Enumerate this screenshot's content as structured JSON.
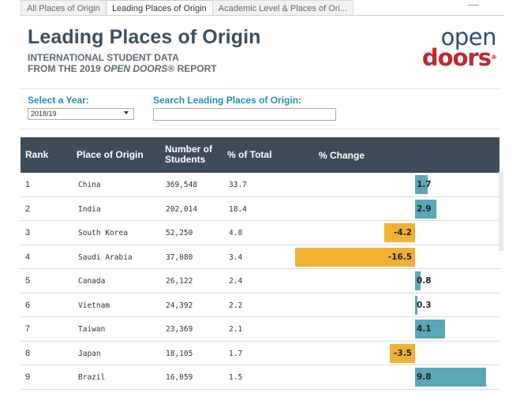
{
  "tabs": [
    "All Places of Origin",
    "Leading Places of Origin",
    "Academic Level & Places of Ori..."
  ],
  "header": {
    "title": "Leading Places of Origin",
    "subtitle_line1": "INTERNATIONAL STUDENT DATA",
    "subtitle_line2_prefix": "FROM THE 2019 ",
    "subtitle_line2_italic": "OPEN DOORS",
    "subtitle_line2_suffix": "® REPORT"
  },
  "logo": {
    "open": "open",
    "doors": "doors",
    "reg": "®"
  },
  "filters": {
    "year_label": "Select a Year:",
    "year_value": "2018/19",
    "search_label": "Search Leading Places of Origin:",
    "search_value": ""
  },
  "table": {
    "headers": {
      "rank": "Rank",
      "place": "Place of Origin",
      "num_line1": "Number of",
      "num_line2": "Students",
      "pct": "% of Total",
      "change": "% Change"
    },
    "rows": [
      {
        "rank": "1",
        "place": "China",
        "students": "369,548",
        "pct": "33.7",
        "change": 1.7,
        "change_label": "1.7"
      },
      {
        "rank": "2",
        "place": "India",
        "students": "202,014",
        "pct": "18.4",
        "change": 2.9,
        "change_label": "2.9"
      },
      {
        "rank": "3",
        "place": "South Korea",
        "students": "52,250",
        "pct": "4.8",
        "change": -4.2,
        "change_label": "-4.2"
      },
      {
        "rank": "4",
        "place": "Saudi Arabia",
        "students": "37,080",
        "pct": "3.4",
        "change": -16.5,
        "change_label": "-16.5"
      },
      {
        "rank": "5",
        "place": "Canada",
        "students": "26,122",
        "pct": "2.4",
        "change": 0.8,
        "change_label": "0.8"
      },
      {
        "rank": "6",
        "place": "Vietnam",
        "students": "24,392",
        "pct": "2.2",
        "change": 0.3,
        "change_label": "0.3"
      },
      {
        "rank": "7",
        "place": "Taiwan",
        "students": "23,369",
        "pct": "2.1",
        "change": 4.1,
        "change_label": "4.1"
      },
      {
        "rank": "8",
        "place": "Japan",
        "students": "18,105",
        "pct": "1.7",
        "change": -3.5,
        "change_label": "-3.5"
      },
      {
        "rank": "9",
        "place": "Brazil",
        "students": "16,059",
        "pct": "1.5",
        "change": 9.8,
        "change_label": "9.8"
      }
    ],
    "colors": {
      "positive": "#5ba7b5",
      "negative": "#f2b134",
      "header_bg": "#3e4c59"
    }
  }
}
